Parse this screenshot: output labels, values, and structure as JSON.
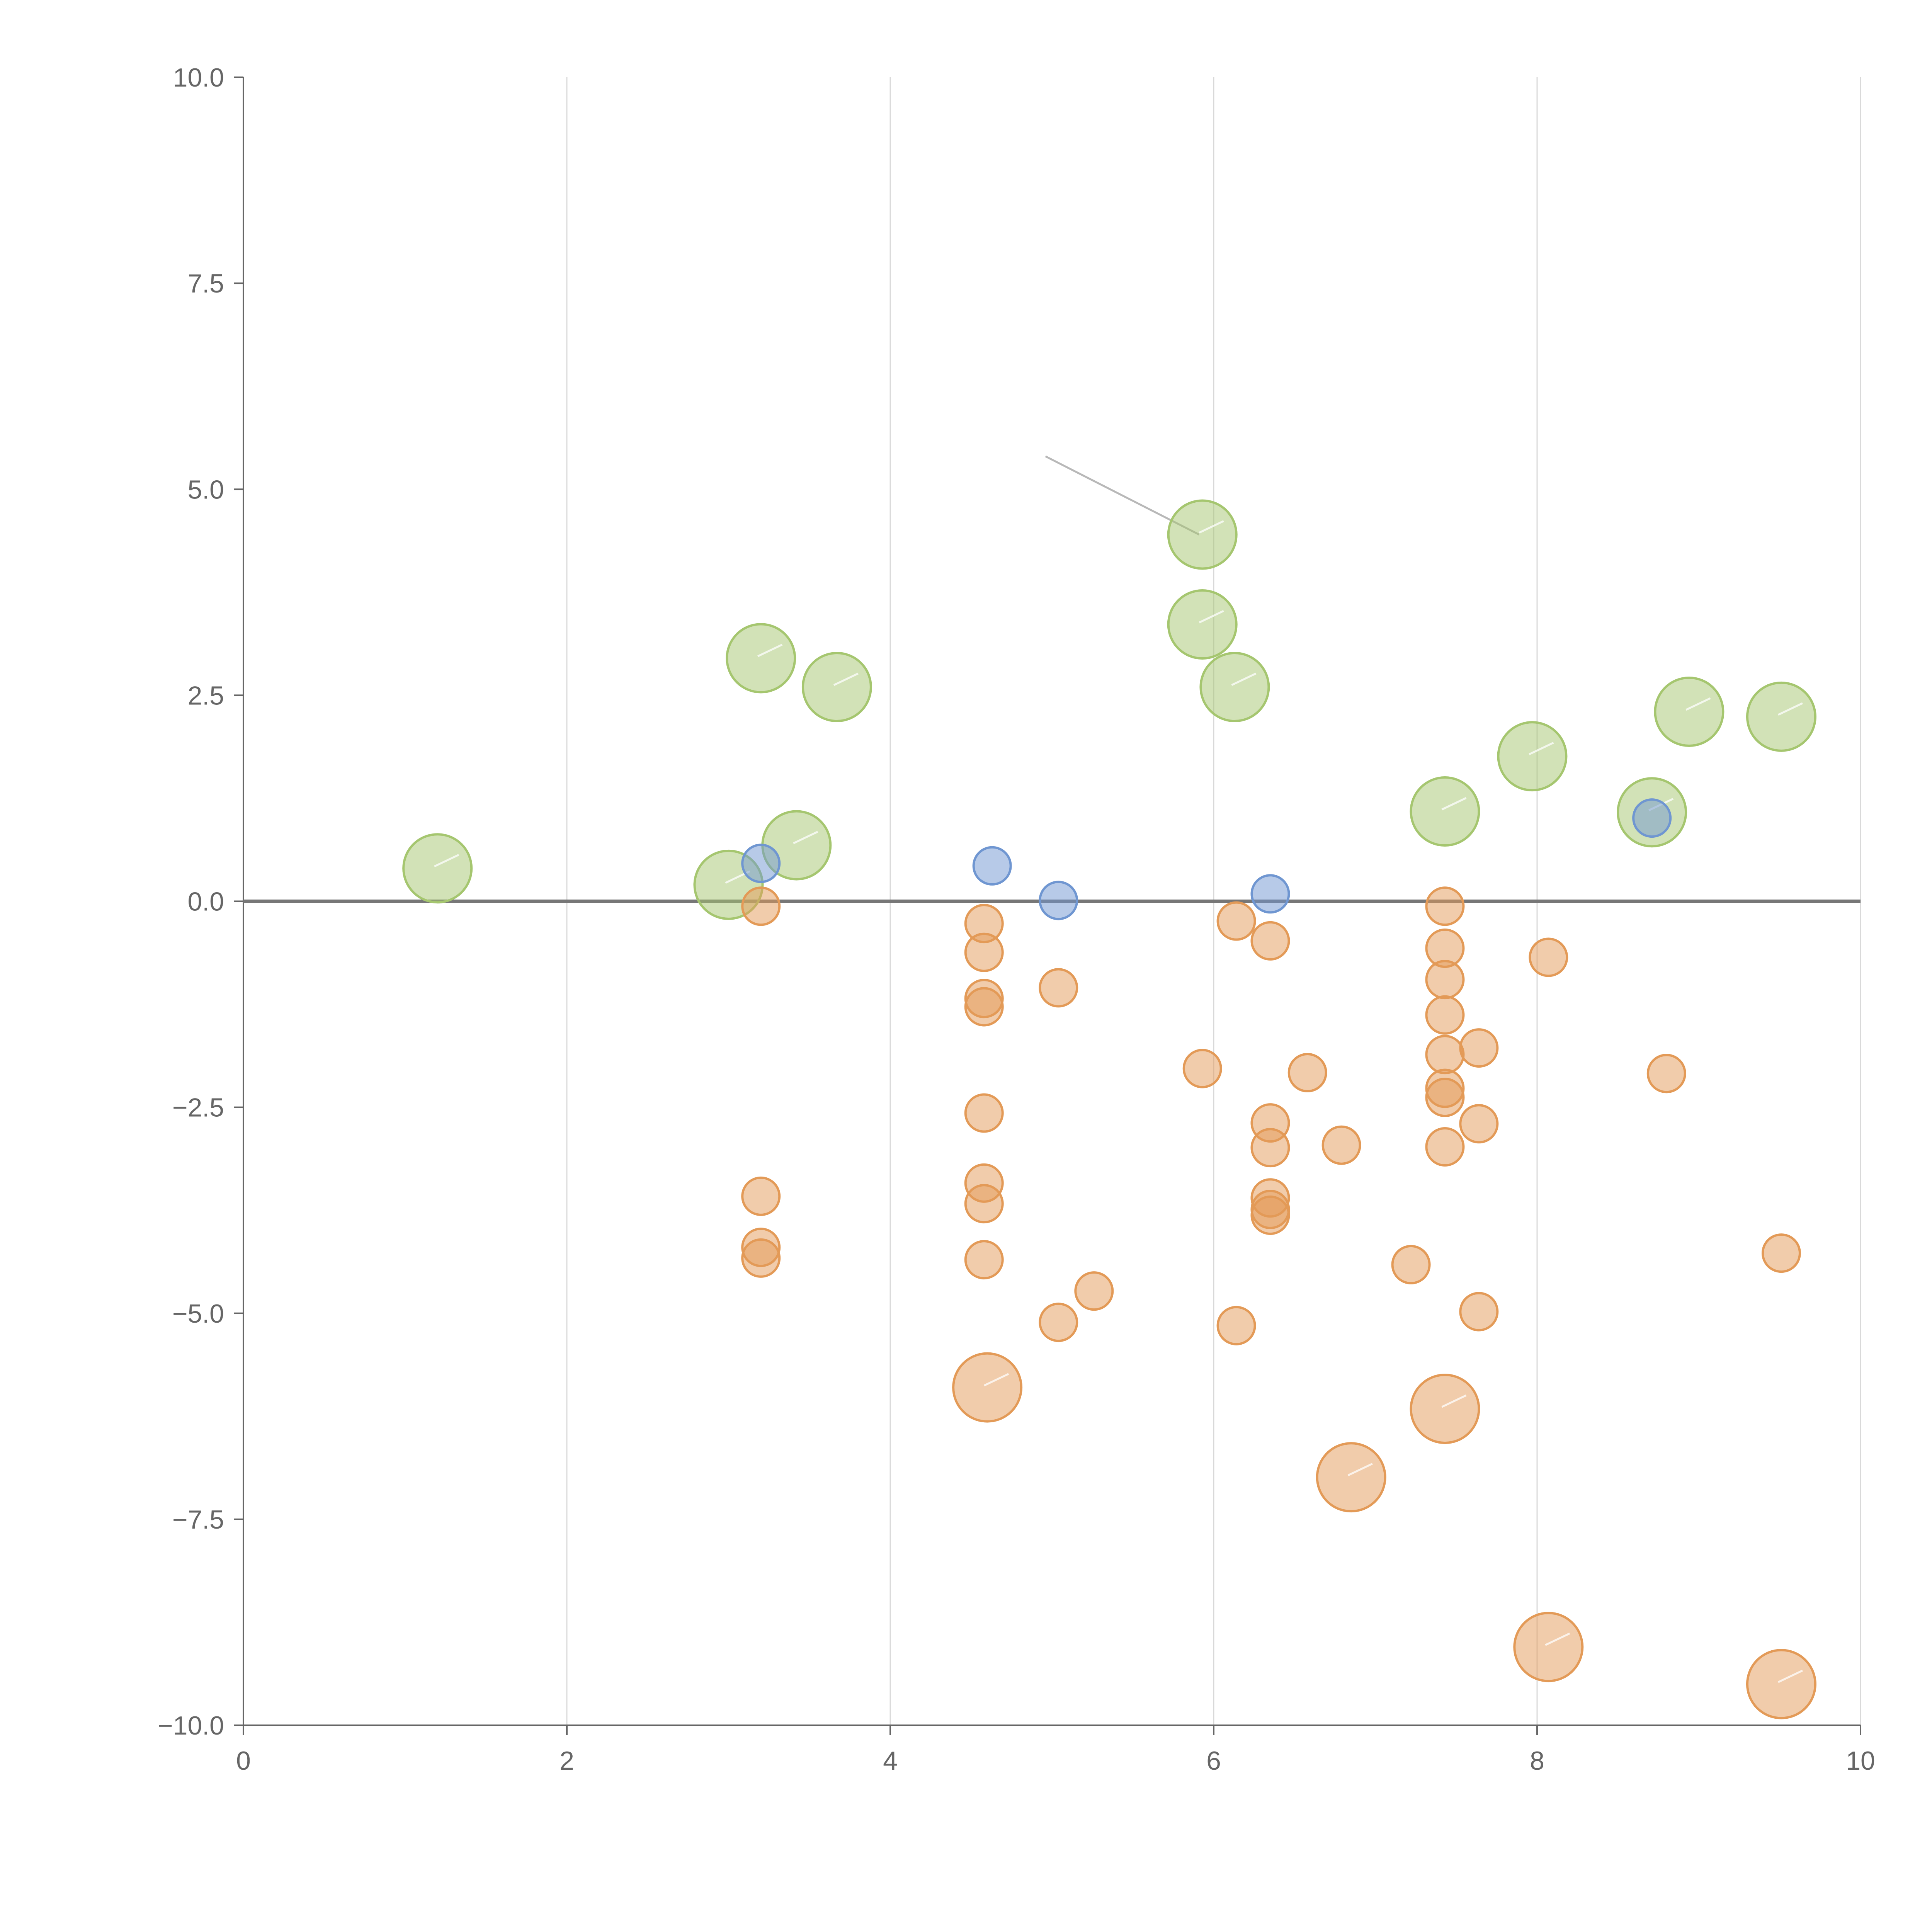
{
  "chart_data": {
    "type": "scatter",
    "title": "",
    "xlabel": "",
    "ylabel": "",
    "xlim": [
      0,
      10
    ],
    "ylim": [
      -10,
      10
    ],
    "x_ticks": [
      "0",
      "2",
      "4",
      "6",
      "8",
      "10"
    ],
    "y_ticks": [
      "−10.0",
      "−7.5",
      "−5.0",
      "−2.5",
      "0.0",
      "2.5",
      "5.0",
      "7.5",
      "10.0"
    ],
    "grid": "vertical",
    "zero_line": true,
    "colors": {
      "green": "#a5c66f",
      "blue": "#6f96d1",
      "orange": "#e39a57",
      "axis": "#666666",
      "grid": "#d9d9d9",
      "zero_line": "#777777"
    },
    "series": [
      {
        "name": "green",
        "color": "#a5c66f",
        "size": "large",
        "points": [
          [
            1.2,
            0.4
          ],
          [
            3.0,
            0.2
          ],
          [
            3.2,
            2.95
          ],
          [
            3.42,
            0.68
          ],
          [
            3.67,
            2.6
          ],
          [
            5.93,
            4.45
          ],
          [
            5.93,
            3.36
          ],
          [
            6.13,
            2.6
          ],
          [
            7.43,
            1.09
          ],
          [
            7.97,
            1.76
          ],
          [
            8.71,
            1.08
          ],
          [
            8.94,
            2.3
          ],
          [
            9.51,
            2.24
          ]
        ]
      },
      {
        "name": "blue",
        "color": "#6f96d1",
        "size": "small",
        "points": [
          [
            3.2,
            0.46
          ],
          [
            4.63,
            0.43
          ],
          [
            5.04,
            0.01
          ],
          [
            6.35,
            0.09
          ],
          [
            8.71,
            1.01
          ]
        ]
      },
      {
        "name": "orange",
        "color": "#e39a57",
        "size": "mixed",
        "points": [
          [
            3.2,
            -0.06,
            "small"
          ],
          [
            3.2,
            -3.58,
            "small"
          ],
          [
            3.2,
            -4.2,
            "small"
          ],
          [
            3.2,
            -4.33,
            "small"
          ],
          [
            4.58,
            -0.27,
            "small"
          ],
          [
            4.58,
            -0.62,
            "small"
          ],
          [
            4.58,
            -1.18,
            "small"
          ],
          [
            4.58,
            -1.28,
            "small"
          ],
          [
            4.58,
            -2.57,
            "small"
          ],
          [
            4.58,
            -3.42,
            "small"
          ],
          [
            4.58,
            -3.67,
            "small"
          ],
          [
            4.58,
            -4.35,
            "small"
          ],
          [
            4.6,
            -5.9,
            "large"
          ],
          [
            5.04,
            -1.05,
            "small"
          ],
          [
            5.04,
            -5.11,
            "small"
          ],
          [
            5.26,
            -4.73,
            "small"
          ],
          [
            5.93,
            -2.03,
            "small"
          ],
          [
            6.14,
            -0.24,
            "small"
          ],
          [
            6.14,
            -5.15,
            "small"
          ],
          [
            6.35,
            -0.48,
            "small"
          ],
          [
            6.35,
            -2.69,
            "small"
          ],
          [
            6.35,
            -2.99,
            "small"
          ],
          [
            6.35,
            -3.6,
            "small"
          ],
          [
            6.35,
            -3.74,
            "small"
          ],
          [
            6.35,
            -3.81,
            "small"
          ],
          [
            6.58,
            -2.08,
            "small"
          ],
          [
            6.79,
            -2.96,
            "small"
          ],
          [
            6.85,
            -6.99,
            "large"
          ],
          [
            7.22,
            -4.41,
            "small"
          ],
          [
            7.43,
            -0.06,
            "small"
          ],
          [
            7.43,
            -0.57,
            "small"
          ],
          [
            7.43,
            -0.95,
            "small"
          ],
          [
            7.43,
            -1.38,
            "small"
          ],
          [
            7.43,
            -1.86,
            "small"
          ],
          [
            7.43,
            -2.27,
            "small"
          ],
          [
            7.43,
            -2.38,
            "small"
          ],
          [
            7.43,
            -2.98,
            "small"
          ],
          [
            7.43,
            -6.16,
            "large"
          ],
          [
            7.64,
            -1.78,
            "small"
          ],
          [
            7.64,
            -2.7,
            "small"
          ],
          [
            7.64,
            -4.98,
            "small"
          ],
          [
            8.07,
            -0.68,
            "small"
          ],
          [
            8.07,
            -9.05,
            "large"
          ],
          [
            8.8,
            -2.09,
            "small"
          ],
          [
            9.51,
            -4.27,
            "small"
          ],
          [
            9.51,
            -9.5,
            "large"
          ]
        ]
      }
    ]
  }
}
